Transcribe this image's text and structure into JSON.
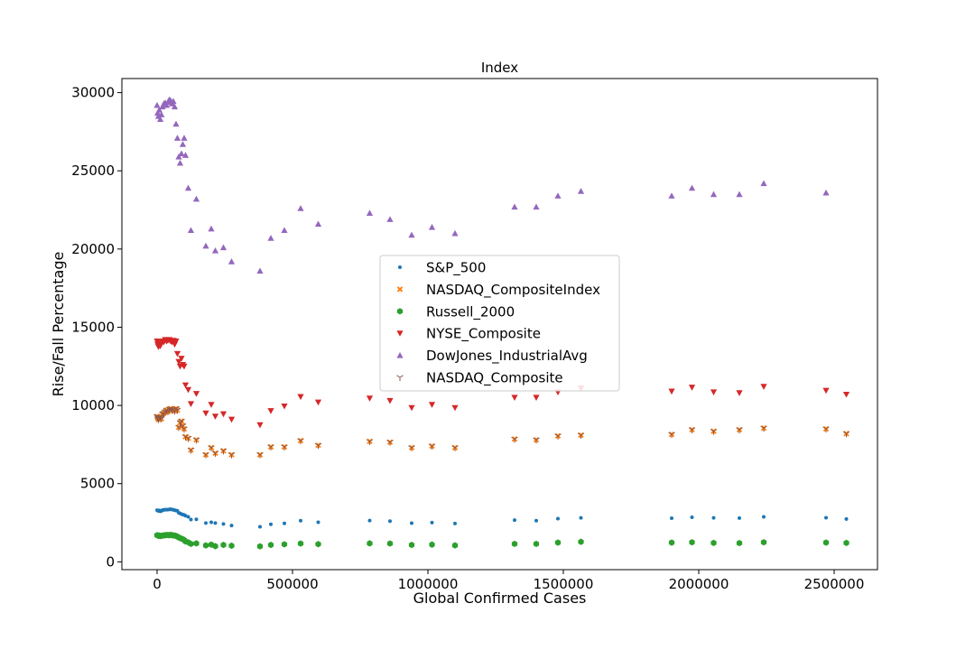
{
  "chart_data": {
    "type": "scatter",
    "title": "Index",
    "xlabel": "Global Confirmed Cases",
    "ylabel": "Rise/Fall Percentage",
    "xlim": [
      -130000,
      2660000
    ],
    "ylim": [
      -500,
      30900
    ],
    "x_ticks": [
      0,
      500000,
      1000000,
      1500000,
      2000000,
      2500000
    ],
    "x_tick_labels": [
      "0",
      "500000",
      "1000000",
      "1500000",
      "2000000",
      "2500000"
    ],
    "y_ticks": [
      0,
      5000,
      10000,
      15000,
      20000,
      25000,
      30000
    ],
    "y_tick_labels": [
      "0",
      "5000",
      "10000",
      "15000",
      "20000",
      "25000",
      "30000"
    ],
    "grid": false,
    "legend_position": "center",
    "x": [
      0,
      2000,
      5000,
      8000,
      12000,
      16000,
      20000,
      25000,
      30000,
      35000,
      40000,
      45000,
      50000,
      55000,
      60000,
      65000,
      70000,
      75000,
      80000,
      85000,
      90000,
      95000,
      100000,
      105000,
      115000,
      125000,
      145000,
      180000,
      200000,
      215000,
      245000,
      275000,
      380000,
      420000,
      470000,
      530000,
      595000,
      785000,
      860000,
      940000,
      1015000,
      1100000,
      1320000,
      1400000,
      1480000,
      1565000,
      1900000,
      1975000,
      2055000,
      2150000,
      2240000,
      2470000,
      2545000
    ],
    "series": [
      {
        "name": "S&P_500",
        "color": "#1f77b4",
        "marker": "point",
        "values": [
          3300,
          3280,
          3250,
          3290,
          3230,
          3250,
          3310,
          3320,
          3340,
          3330,
          3340,
          3350,
          3370,
          3340,
          3330,
          3300,
          3280,
          3260,
          3130,
          3100,
          3050,
          3020,
          3000,
          2950,
          2880,
          2700,
          2720,
          2480,
          2530,
          2480,
          2420,
          2320,
          2240,
          2400,
          2460,
          2630,
          2530,
          2640,
          2600,
          2470,
          2510,
          2450,
          2670,
          2630,
          2760,
          2810,
          2790,
          2850,
          2810,
          2800,
          2880,
          2820,
          2740
        ]
      },
      {
        "name": "NASDAQ_CompositeIndex",
        "color": "#ff7f0e",
        "marker": "x-filled",
        "values": [
          9300,
          9200,
          9100,
          9250,
          9250,
          9150,
          9450,
          9500,
          9600,
          9700,
          9600,
          9750,
          9800,
          9700,
          9750,
          9650,
          9800,
          9700,
          8600,
          8900,
          9000,
          8700,
          8500,
          8000,
          7900,
          7150,
          7800,
          6850,
          7300,
          6950,
          7100,
          6850,
          6850,
          7350,
          7350,
          7750,
          7450,
          7700,
          7650,
          7300,
          7400,
          7300,
          7850,
          7800,
          8050,
          8100,
          8150,
          8450,
          8350,
          8450,
          8550,
          8500,
          8200
        ]
      },
      {
        "name": "Russell_2000",
        "color": "#2ca02c",
        "marker": "hexagon",
        "values": [
          1700,
          1690,
          1660,
          1680,
          1650,
          1660,
          1680,
          1690,
          1700,
          1710,
          1720,
          1700,
          1730,
          1700,
          1690,
          1680,
          1650,
          1620,
          1550,
          1520,
          1480,
          1450,
          1400,
          1300,
          1250,
          1150,
          1180,
          1050,
          1100,
          1000,
          1080,
          1030,
          990,
          1080,
          1120,
          1170,
          1130,
          1180,
          1170,
          1080,
          1100,
          1050,
          1150,
          1150,
          1230,
          1280,
          1230,
          1250,
          1210,
          1200,
          1250,
          1230,
          1210
        ]
      },
      {
        "name": "NYSE_Composite",
        "color": "#d62728",
        "marker": "triangle-down",
        "values": [
          14100,
          13900,
          13750,
          14000,
          13800,
          13950,
          14100,
          14050,
          14200,
          14100,
          14150,
          14200,
          14100,
          14050,
          14150,
          13900,
          14100,
          13300,
          12800,
          12500,
          13000,
          12600,
          12500,
          11300,
          11000,
          10100,
          10750,
          9500,
          10050,
          9300,
          9450,
          9100,
          8750,
          9650,
          9950,
          10550,
          10200,
          10450,
          10300,
          9850,
          10050,
          9850,
          10500,
          10500,
          10850,
          11100,
          10900,
          11150,
          10850,
          10800,
          11200,
          10950,
          10700
        ]
      },
      {
        "name": "DowJones_IndustrialAvg",
        "color": "#9467bd",
        "marker": "triangle-up",
        "values": [
          29200,
          28700,
          28500,
          28900,
          28300,
          28600,
          29100,
          29300,
          29350,
          29200,
          29400,
          29550,
          29500,
          29300,
          29450,
          29100,
          28000,
          27100,
          25900,
          25500,
          26100,
          26700,
          27100,
          26000,
          23900,
          21200,
          23200,
          20200,
          21300,
          19900,
          20100,
          19200,
          18600,
          20700,
          21200,
          22600,
          21600,
          22300,
          21900,
          20900,
          21400,
          21000,
          22700,
          22700,
          23400,
          23700,
          23400,
          23900,
          23500,
          23500,
          24200,
          23600,
          null
        ]
      },
      {
        "name": "NASDAQ_Composite",
        "color": "#8c564b",
        "marker": "tri-down",
        "values": [
          9300,
          9200,
          9100,
          9250,
          9250,
          9150,
          9450,
          9500,
          9600,
          9700,
          9600,
          9750,
          9800,
          9700,
          9750,
          9650,
          9800,
          9700,
          8600,
          8900,
          9000,
          8700,
          8500,
          8000,
          7900,
          7150,
          7800,
          6850,
          7300,
          6950,
          7100,
          6850,
          6850,
          7350,
          7350,
          7750,
          7450,
          7700,
          7650,
          7300,
          7400,
          7300,
          7850,
          7800,
          8050,
          8100,
          8150,
          8450,
          8350,
          8450,
          8550,
          8500,
          8200
        ]
      }
    ]
  }
}
